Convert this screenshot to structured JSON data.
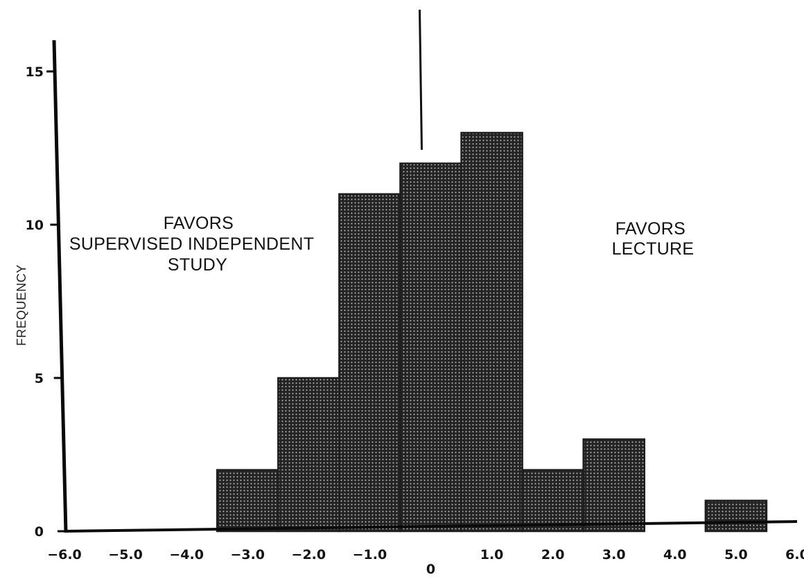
{
  "chart_data": {
    "type": "bar",
    "title": "",
    "ylabel": "FREQUENCY",
    "xlabel": "",
    "xlim": [
      -6,
      6
    ],
    "ylim": [
      0,
      16
    ],
    "bin_width": 1.0,
    "bins": [
      {
        "center": -3.0,
        "value": 2
      },
      {
        "center": -2.0,
        "value": 5
      },
      {
        "center": -1.0,
        "value": 11
      },
      {
        "center": 0.0,
        "value": 12
      },
      {
        "center": 1.0,
        "value": 13
      },
      {
        "center": 2.0,
        "value": 2
      },
      {
        "center": 3.0,
        "value": 3
      },
      {
        "center": 4.0,
        "value": 0
      },
      {
        "center": 5.0,
        "value": 1
      }
    ],
    "x_ticks": [
      {
        "value": -6,
        "label": "−6.0"
      },
      {
        "value": -5,
        "label": "−5.0"
      },
      {
        "value": -4,
        "label": "−4.0"
      },
      {
        "value": -3,
        "label": "−3.0"
      },
      {
        "value": -2,
        "label": "−2.0"
      },
      {
        "value": -1,
        "label": "−1.0"
      },
      {
        "value": 0,
        "label": "0"
      },
      {
        "value": 1,
        "label": "1.0"
      },
      {
        "value": 2,
        "label": "2.0"
      },
      {
        "value": 3,
        "label": "3.0"
      },
      {
        "value": 4,
        "label": "4.0"
      },
      {
        "value": 5,
        "label": "5.0"
      },
      {
        "value": 6,
        "label": "6.0"
      }
    ],
    "y_ticks": [
      {
        "value": 0,
        "label": "0"
      },
      {
        "value": 5,
        "label": "5"
      },
      {
        "value": 10,
        "label": "10"
      },
      {
        "value": 15,
        "label": "15"
      }
    ],
    "reference_line_x": 0,
    "annotations": {
      "left": [
        "FAVORS",
        "SUPERVISED INDEPENDENT",
        "STUDY"
      ],
      "right": [
        "FAVORS",
        "LECTURE"
      ]
    },
    "grid": false,
    "legend": "none",
    "bar_color": "#1e1e1e",
    "axis_color": "#0a0a0a"
  }
}
